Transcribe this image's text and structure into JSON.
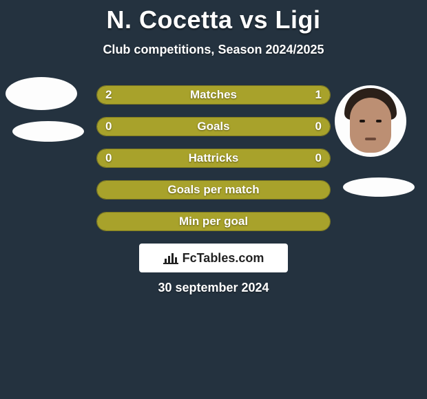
{
  "background_color": "#24323f",
  "text_color": "#ffffff",
  "title_fontsize": 36,
  "subtitle_fontsize": 18,
  "row_fontsize": 17,
  "date_fontsize": 18,
  "header": {
    "title": "N. Cocetta vs Ligi",
    "subtitle": "Club competitions, Season 2024/2025"
  },
  "players": {
    "left": {
      "name": "N. Cocetta",
      "accent_color": "#a8a22b",
      "avatar_shape": "ellipse",
      "avatar_bg": "#fdfdfd"
    },
    "right": {
      "name": "Ligi",
      "accent_color": "#a8a22b",
      "avatar_shape": "circle-photo",
      "avatar_bg": "#fdfdfd"
    }
  },
  "stats": [
    {
      "label": "Matches",
      "left_value": "2",
      "right_value": "1",
      "left_share": 0.667,
      "right_share": 0.333,
      "show_values": true
    },
    {
      "label": "Goals",
      "left_value": "0",
      "right_value": "0",
      "left_share": 0.5,
      "right_share": 0.5,
      "show_values": true
    },
    {
      "label": "Hattricks",
      "left_value": "0",
      "right_value": "0",
      "left_share": 0.5,
      "right_share": 0.5,
      "show_values": true
    },
    {
      "label": "Goals per match",
      "left_value": "",
      "right_value": "",
      "left_share": 1.0,
      "right_share": 0.0,
      "show_values": false
    },
    {
      "label": "Min per goal",
      "left_value": "",
      "right_value": "",
      "left_share": 1.0,
      "right_share": 0.0,
      "show_values": false
    }
  ],
  "bar_style": {
    "height": 28,
    "radius": 14,
    "border_color": "#7e7a20",
    "left_color": "#a8a22b",
    "right_color": "#a8a22b",
    "row_gap": 18
  },
  "branding": {
    "text": "FcTables.com",
    "bg": "#ffffff",
    "fg": "#222222",
    "icon": "bar-chart-icon"
  },
  "date": "30 september 2024"
}
